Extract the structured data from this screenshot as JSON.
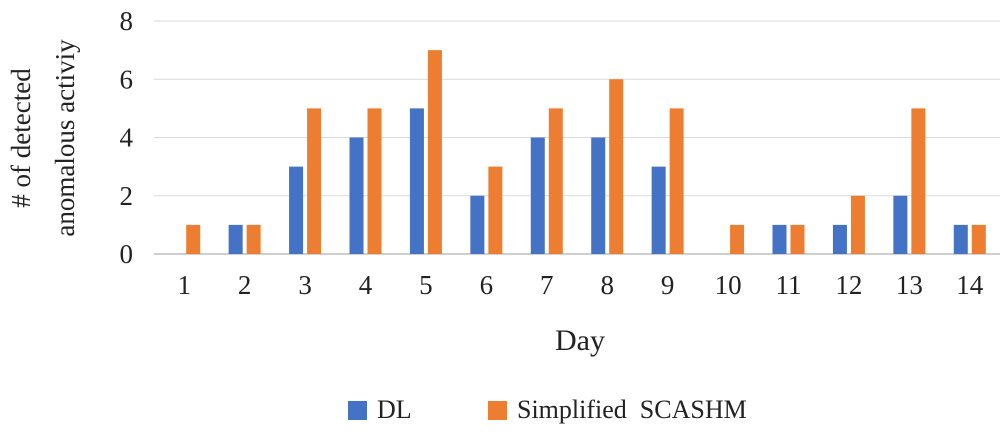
{
  "chart_data": {
    "type": "bar",
    "title": "",
    "xlabel": "Day",
    "ylabel_lines": [
      "# of detected",
      "anomalous activiy"
    ],
    "categories": [
      "1",
      "2",
      "3",
      "4",
      "5",
      "6",
      "7",
      "8",
      "9",
      "10",
      "11",
      "12",
      "13",
      "14"
    ],
    "ylim": [
      0,
      8
    ],
    "yticks": [
      "0",
      "2",
      "4",
      "6",
      "8"
    ],
    "grid": true,
    "legend_position": "bottom",
    "series": [
      {
        "name": "DL",
        "color": "#4472C4",
        "values": [
          0,
          1,
          3,
          4,
          5,
          2,
          4,
          4,
          3,
          0,
          1,
          1,
          2,
          1
        ]
      },
      {
        "name": "Simplified  SCASHM",
        "color": "#ED7D31",
        "values": [
          1,
          1,
          5,
          5,
          7,
          3,
          5,
          6,
          5,
          1,
          1,
          2,
          5,
          1
        ]
      }
    ]
  }
}
